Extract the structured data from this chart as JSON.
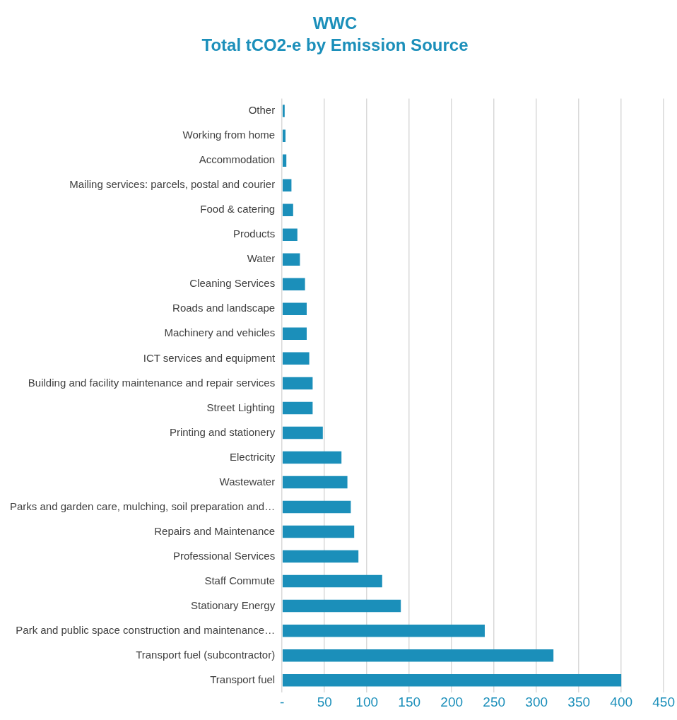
{
  "chart_data": {
    "type": "bar",
    "orientation": "horizontal",
    "title": "WWC",
    "subtitle": "Total tCO2-e by Emission Source",
    "categories": [
      "Other",
      "Working from home",
      "Accommodation",
      "Mailing services: parcels, postal and courier",
      "Food & catering",
      "Products",
      "Water",
      "Cleaning Services",
      "Roads and landscape",
      "Machinery and vehicles",
      "ICT services and equipment",
      "Building and facility maintenance and repair services",
      "Street Lighting",
      "Printing and stationery",
      "Electricity",
      "Wastewater",
      "Parks and garden care, mulching, soil preparation and…",
      "Repairs and Maintenance",
      "Professional Services",
      "Staff Commute",
      "Stationary Energy",
      "Park and public space construction and maintenance…",
      "Transport fuel (subcontractor)",
      "Transport fuel"
    ],
    "values": [
      3,
      4,
      5,
      11,
      13,
      18,
      21,
      27,
      29,
      29,
      32,
      36,
      36,
      48,
      70,
      77,
      81,
      85,
      90,
      118,
      140,
      239,
      320,
      400
    ],
    "color": "#1b8fba",
    "xlim": [
      0,
      450
    ],
    "xticks": [
      {
        "value": 0,
        "label": "-"
      },
      50,
      100,
      150,
      200,
      250,
      300,
      350,
      400,
      450
    ],
    "grid": "x",
    "legend": false
  }
}
